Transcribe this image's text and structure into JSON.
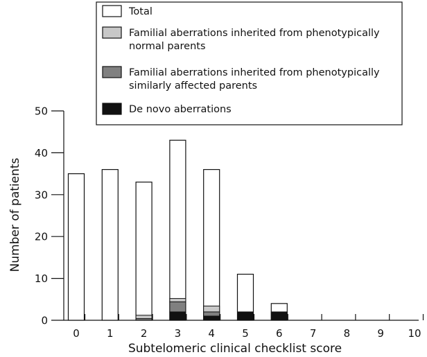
{
  "chart_data": {
    "type": "bar",
    "stacked": true,
    "overlay_series": "Total",
    "xlabel": "Subtelomeric clinical checklist score",
    "ylabel": "Number of patients",
    "ylim": [
      0,
      50
    ],
    "yticks": [
      0,
      10,
      20,
      30,
      40,
      50
    ],
    "categories": [
      "0",
      "1",
      "2",
      "3",
      "4",
      "5",
      "6",
      "7",
      "8",
      "9",
      "10"
    ],
    "series": [
      {
        "name": "Total",
        "color": "#ffffff",
        "values": [
          35,
          36,
          33,
          43,
          36,
          11,
          4,
          0,
          0,
          0,
          0
        ]
      },
      {
        "name": "De novo aberrations",
        "color": "#111111",
        "values": [
          0,
          0,
          0,
          2,
          1,
          2,
          2,
          0,
          0,
          0,
          0
        ]
      },
      {
        "name": "Familial aberrations inherited from phenotypically similarly affected parents",
        "color": "#808080",
        "values": [
          0,
          0,
          0.4,
          2.4,
          1,
          0,
          0,
          0,
          0,
          0,
          0
        ]
      },
      {
        "name": "Familial aberrations inherited from phenotypically normal parents",
        "color": "#c8c8c8",
        "values": [
          0,
          0,
          0.8,
          0.8,
          1.4,
          0,
          0,
          0,
          0,
          0,
          0
        ]
      }
    ],
    "legend": {
      "position": "top",
      "entries": [
        {
          "label_lines": [
            "Total"
          ],
          "color": "#ffffff"
        },
        {
          "label_lines": [
            "Familial aberrations inherited from phenotypically",
            "normal parents"
          ],
          "color": "#c8c8c8"
        },
        {
          "label_lines": [
            "Familial aberrations inherited from phenotypically",
            "similarly affected parents"
          ],
          "color": "#808080"
        },
        {
          "label_lines": [
            "De novo aberrations"
          ],
          "color": "#111111"
        }
      ]
    },
    "grid": false
  }
}
